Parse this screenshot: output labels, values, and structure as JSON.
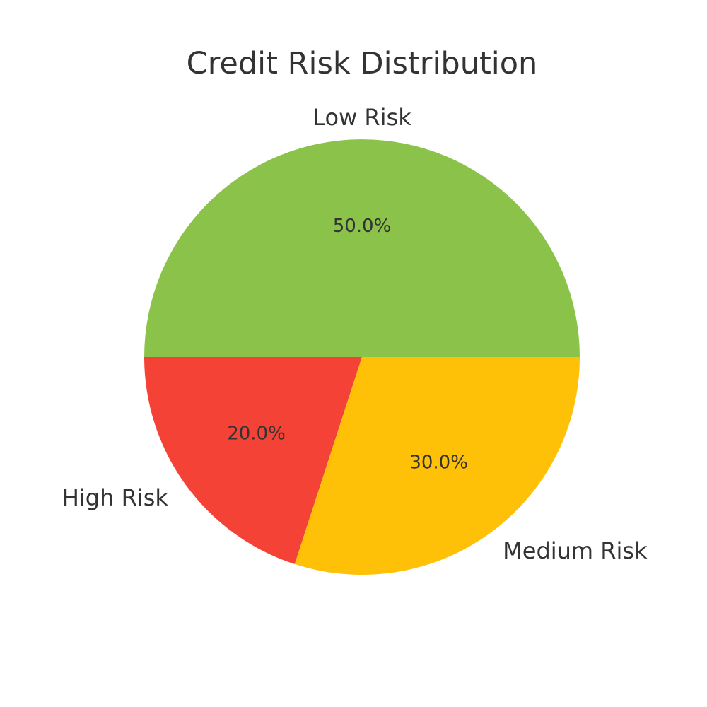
{
  "chart_data": {
    "type": "pie",
    "title": "Credit Risk Distribution",
    "start_angle_deg": 0,
    "direction": "counterclockwise",
    "slices": [
      {
        "label": "Low Risk",
        "value": 50.0,
        "pct_label": "50.0%",
        "color": "#8bc34a"
      },
      {
        "label": "High Risk",
        "value": 20.0,
        "pct_label": "20.0%",
        "color": "#f44336"
      },
      {
        "label": "Medium Risk",
        "value": 30.0,
        "pct_label": "30.0%",
        "color": "#ffc107"
      }
    ]
  }
}
